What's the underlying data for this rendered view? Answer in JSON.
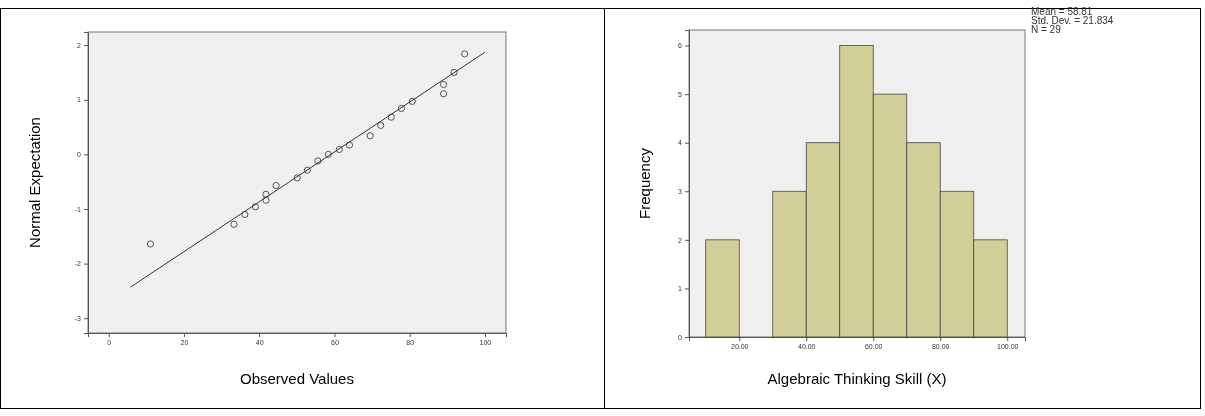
{
  "chart_data": [
    {
      "type": "scatter",
      "xlabel": "Observed Values",
      "ylabel": "Normal Expectation",
      "xlim": [
        -5.5,
        105.6
      ],
      "ylim": [
        -3.27,
        2.24
      ],
      "xticks": [
        0,
        20,
        40,
        60,
        80,
        100
      ],
      "yticks": [
        -3,
        -2,
        -1,
        0,
        1,
        2
      ],
      "grid": false,
      "series": [
        {
          "type": "scatter",
          "color": "#555555",
          "marker": "circle",
          "x": [
            11.1,
            33.3,
            36.2,
            39.0,
            41.8,
            41.8,
            44.5,
            50.1,
            52.8,
            55.6,
            58.4,
            61.3,
            64.0,
            69.5,
            72.3,
            75.1,
            77.8,
            80.7,
            89.0,
            89.0,
            91.8,
            94.6
          ],
          "values": [
            -1.64,
            -1.28,
            -1.1,
            -0.96,
            -0.73,
            -0.84,
            -0.57,
            -0.43,
            -0.29,
            -0.12,
            0.0,
            0.09,
            0.17,
            0.34,
            0.53,
            0.68,
            0.84,
            0.97,
            1.11,
            1.28,
            1.5,
            1.84
          ]
        },
        {
          "type": "line",
          "color": "#333333",
          "line_style": "solid",
          "x": [
            5.8,
            100
          ],
          "values": [
            -2.43,
            1.87
          ]
        }
      ]
    },
    {
      "type": "histogram",
      "xlabel": "Algebraic Thinking Skill (X)",
      "ylabel": "Frequency",
      "bins": [
        10,
        20,
        30,
        40,
        50,
        60,
        70,
        80,
        90,
        100
      ],
      "values": [
        2,
        0,
        3,
        4,
        6,
        5,
        4,
        3,
        2
      ],
      "color": "#d3cf98",
      "xlim": [
        5,
        105.3
      ],
      "ylim": [
        0,
        6.32
      ],
      "xticks": [
        {
          "value": 20,
          "label": "20.00"
        },
        {
          "value": 40,
          "label": "40.00"
        },
        {
          "value": 60,
          "label": "60.00"
        },
        {
          "value": 80,
          "label": "80.00"
        },
        {
          "value": 100,
          "label": "100.00"
        }
      ],
      "yticks": [
        0,
        1,
        2,
        3,
        4,
        5,
        6
      ],
      "grid": false,
      "annotations": [
        "Mean = 58.81",
        "Std. Dev. = 21.834",
        "N = 29"
      ]
    }
  ]
}
